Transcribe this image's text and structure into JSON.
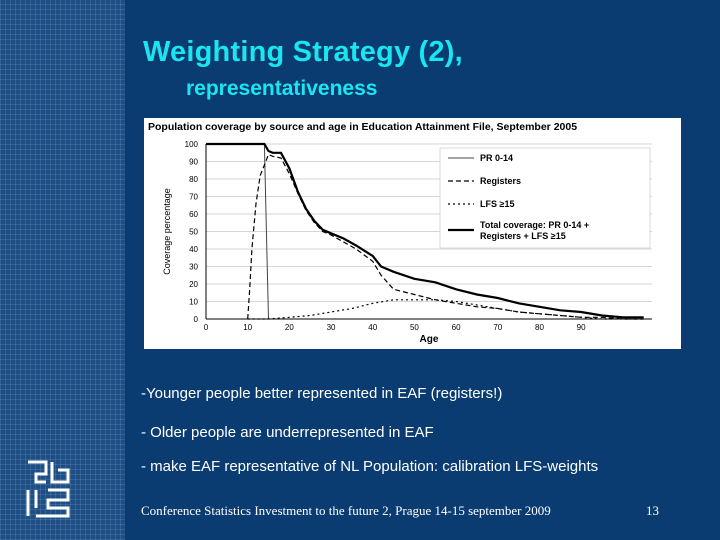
{
  "slide": {
    "title": "Weighting Strategy (2),",
    "subtitle": "representativeness",
    "bullets": [
      "-Younger people better represented in EAF (registers!)",
      "- Older people are underrepresented in EAF",
      "- make EAF representative of NL Population: calibration LFS-weights"
    ],
    "footer": "Conference Statistics Investment to the future 2, Prague 14-15 september 2009",
    "page_number": "13",
    "colors": {
      "background": "#0a3c72",
      "title": "#19e6f0",
      "text": "#ffffff"
    }
  },
  "chart_data": {
    "type": "line",
    "title": "Population coverage by source and age in Education Attainment File, September 2005",
    "xlabel": "Age",
    "ylabel": "Coverage percentage",
    "xlim": [
      0,
      107
    ],
    "ylim": [
      0,
      100
    ],
    "xticks": [
      0,
      10,
      20,
      30,
      40,
      50,
      60,
      70,
      80,
      90
    ],
    "yticks": [
      0,
      10,
      20,
      30,
      40,
      50,
      60,
      70,
      80,
      90,
      100
    ],
    "grid": true,
    "legend": "top-right",
    "series": [
      {
        "name": "PR 0-14",
        "style": "solid-thin",
        "x": [
          0,
          5,
          10,
          12,
          14,
          14.5,
          15
        ],
        "y": [
          100,
          100,
          100,
          100,
          100,
          50,
          0
        ]
      },
      {
        "name": "Registers",
        "style": "dashed",
        "x": [
          10,
          10.5,
          11,
          12,
          13,
          14,
          15,
          16,
          18,
          20,
          22,
          24,
          26,
          28,
          30,
          33,
          36,
          40,
          42,
          45,
          50,
          55,
          60,
          65,
          70,
          75,
          80,
          85,
          90,
          95,
          100,
          105
        ],
        "y": [
          0,
          18,
          40,
          66,
          82,
          88,
          94,
          93,
          92,
          83,
          72,
          62,
          55,
          50,
          48,
          44,
          40,
          33,
          25,
          17,
          14,
          11,
          9,
          7,
          6,
          4,
          3,
          2,
          1,
          1,
          0,
          0
        ],
        "mark_every": 1
      },
      {
        "name": "LFS ≥15",
        "style": "dotted",
        "x": [
          10,
          15,
          20,
          25,
          30,
          35,
          40,
          45,
          50,
          55,
          60,
          65,
          70,
          75,
          80,
          85,
          90,
          95,
          100,
          105
        ],
        "y": [
          0,
          0,
          1,
          2,
          4,
          6,
          9,
          11,
          11,
          11,
          10,
          8,
          6,
          4,
          3,
          2,
          1,
          0,
          0,
          0
        ]
      },
      {
        "name": "Total coverage: PR 0-14 + Registers + LFS ≥15",
        "style": "solid-thick",
        "x": [
          0,
          5,
          10,
          14,
          15,
          16,
          18,
          20,
          22,
          24,
          26,
          28,
          30,
          33,
          36,
          40,
          42,
          45,
          50,
          55,
          60,
          65,
          70,
          75,
          80,
          85,
          90,
          95,
          100,
          105
        ],
        "y": [
          100,
          100,
          100,
          100,
          96,
          95,
          95,
          86,
          73,
          63,
          56,
          51,
          49,
          46,
          42,
          36,
          30,
          27,
          23,
          21,
          17,
          14,
          12,
          9,
          7,
          5,
          4,
          2,
          1,
          1
        ]
      }
    ]
  }
}
